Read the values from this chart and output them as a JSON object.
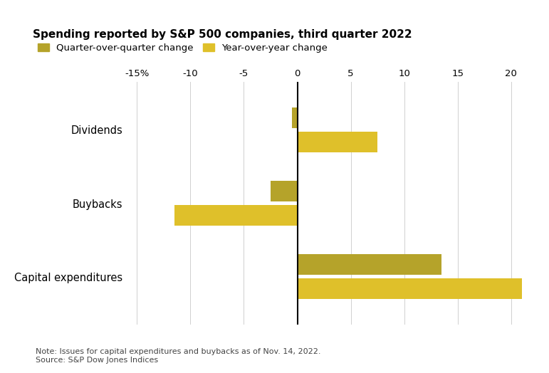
{
  "title": "Spending reported by S&P 500 companies, third quarter 2022",
  "categories": [
    "Dividends",
    "Buybacks",
    "Capital expenditures"
  ],
  "qoq_values": [
    -0.5,
    -2.5,
    13.5
  ],
  "yoy_values": [
    7.5,
    -11.5,
    21.0
  ],
  "qoq_color": "#b5a32a",
  "yoy_color": "#dfc02a",
  "xlim": [
    -16,
    22
  ],
  "xticks": [
    -15,
    -10,
    -5,
    0,
    5,
    10,
    15,
    20
  ],
  "xticklabels": [
    "-15%",
    "-10",
    "-5",
    "0",
    "5",
    "10",
    "15",
    "20"
  ],
  "legend_qoq_label": "Quarter-over-quarter change",
  "legend_yoy_label": "Year-over-year change",
  "note": "Note: Issues for capital expenditures and buybacks as of Nov. 14, 2022.",
  "source": "Source: S&P Dow Jones Indices",
  "background_color": "#ffffff",
  "bar_height": 0.28,
  "bar_gap": 0.05
}
